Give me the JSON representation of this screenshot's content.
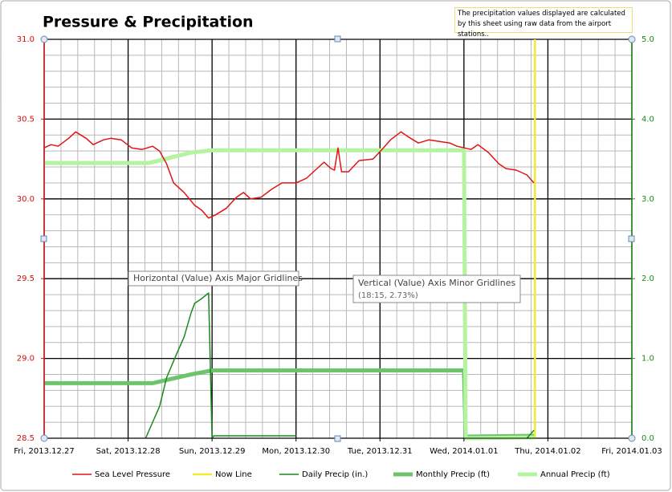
{
  "chart_data": {
    "type": "line",
    "title": "Pressure & Precipitation",
    "note": "The precipitation values displayed are calculated by this sheet using raw data from the airport stations..",
    "annotations": [
      {
        "text": "Horizontal (Value) Axis Major Gridlines"
      },
      {
        "text": "Vertical (Value) Axis Minor Gridlines",
        "detail": "(18:15, 2.73%)"
      }
    ],
    "xlim": [
      "2013-12-27",
      "2014-01-03"
    ],
    "xticks": [
      {
        "value": "2013-12-27",
        "label": "Fri, 2013.12.27"
      },
      {
        "value": "2013-12-28",
        "label": "Sat, 2013.12.28"
      },
      {
        "value": "2013-12-29",
        "label": "Sun, 2013.12.29"
      },
      {
        "value": "2013-12-30",
        "label": "Mon, 2013.12.30"
      },
      {
        "value": "2013-12-31",
        "label": "Tue, 2013.12.31"
      },
      {
        "value": "2014-01-01",
        "label": "Wed, 2014.01.01"
      },
      {
        "value": "2014-01-02",
        "label": "Thu, 2014.01.02"
      },
      {
        "value": "2014-01-03",
        "label": "Fri, 2014.01.03"
      }
    ],
    "x_minor_interval_days": 0.2,
    "ylim": [
      28.5,
      31.0
    ],
    "yticks": [
      {
        "value": 28.5,
        "label": "28.5"
      },
      {
        "value": 29.0,
        "label": "29.0"
      },
      {
        "value": 29.5,
        "label": "29.5"
      },
      {
        "value": 30.0,
        "label": "30.0"
      },
      {
        "value": 30.5,
        "label": "30.5"
      },
      {
        "value": 31.0,
        "label": "31.0"
      }
    ],
    "y_minor_interval": 0.1,
    "y2lim": [
      0,
      5
    ],
    "y2ticks": [
      {
        "value": 0,
        "label": "0.0"
      },
      {
        "value": 1,
        "label": "1.0"
      },
      {
        "value": 2,
        "label": "2.0"
      },
      {
        "value": 3,
        "label": "3.0"
      },
      {
        "value": 4,
        "label": "4.0"
      },
      {
        "value": 5,
        "label": "5.0"
      }
    ],
    "y_axis_color": "#d01010",
    "y2_axis_color": "#1a8a1a",
    "grid": true,
    "legend": "bottom",
    "series": [
      {
        "name": "Sea Level Pressure",
        "color": "#e01414",
        "line_width": 1.5,
        "x": [
          "2013-12-27 00:00",
          "2013-12-27 02:00",
          "2013-12-27 04:00",
          "2013-12-27 07:00",
          "2013-12-27 09:00",
          "2013-12-27 12:00",
          "2013-12-27 14:00",
          "2013-12-27 17:00",
          "2013-12-27 19:00",
          "2013-12-27 22:00",
          "2013-12-28 01:00",
          "2013-12-28 04:00",
          "2013-12-28 07:00",
          "2013-12-28 09:00",
          "2013-12-28 11:00",
          "2013-12-28 13:00",
          "2013-12-28 16:00",
          "2013-12-28 19:00",
          "2013-12-28 21:00",
          "2013-12-28 23:00",
          "2013-12-29 01:00",
          "2013-12-29 04:00",
          "2013-12-29 07:00",
          "2013-12-29 09:00",
          "2013-12-29 11:00",
          "2013-12-29 14:00",
          "2013-12-29 17:00",
          "2013-12-29 20:00",
          "2013-12-30 00:00",
          "2013-12-30 03:00",
          "2013-12-30 06:00",
          "2013-12-30 08:00",
          "2013-12-30 10:00",
          "2013-12-30 11:00",
          "2013-12-30 12:00",
          "2013-12-30 13:00",
          "2013-12-30 15:00",
          "2013-12-30 18:00",
          "2013-12-30 22:00",
          "2013-12-31 01:00",
          "2013-12-31 03:00",
          "2013-12-31 06:00",
          "2013-12-31 08:00",
          "2013-12-31 11:00",
          "2013-12-31 14:00",
          "2013-12-31 17:00",
          "2013-12-31 20:00",
          "2013-12-31 22:00",
          "2014-01-01 02:00",
          "2014-01-01 04:00",
          "2014-01-01 07:00",
          "2014-01-01 10:00",
          "2014-01-01 12:00",
          "2014-01-01 15:00",
          "2014-01-01 18:00",
          "2014-01-01 20:00"
        ],
        "values": [
          30.32,
          30.34,
          30.33,
          30.38,
          30.42,
          30.38,
          30.34,
          30.37,
          30.38,
          30.37,
          30.32,
          30.31,
          30.33,
          30.3,
          30.22,
          30.1,
          30.04,
          29.96,
          29.93,
          29.88,
          29.9,
          29.94,
          30.01,
          30.04,
          30.0,
          30.01,
          30.06,
          30.1,
          30.1,
          30.13,
          30.19,
          30.23,
          30.19,
          30.18,
          30.32,
          30.17,
          30.17,
          30.24,
          30.25,
          30.32,
          30.37,
          30.42,
          30.39,
          30.35,
          30.37,
          30.36,
          30.35,
          30.33,
          30.31,
          30.34,
          30.29,
          30.22,
          30.19,
          30.18,
          30.15,
          30.1
        ]
      },
      {
        "name": "Now Line",
        "color": "#f0ec30",
        "line_width": 2.5,
        "axis": "y2",
        "x": [
          "2014-01-01 20:18",
          "2014-01-01 20:18"
        ],
        "values": [
          0,
          5
        ]
      },
      {
        "name": "Daily Precip (in.)",
        "color": "#1a8a1a",
        "line_width": 1.5,
        "axis": "y2",
        "x": [
          "2013-12-28 05:00",
          "2013-12-28 09:00",
          "2013-12-28 11:00",
          "2013-12-28 14:00",
          "2013-12-28 16:00",
          "2013-12-28 18:00",
          "2013-12-28 19:00",
          "2013-12-28 21:00",
          "2013-12-28 23:00",
          "2013-12-29 00:00",
          "2013-12-29 00:30",
          "2013-12-30 00:00",
          "2013-12-31 00:00",
          "2014-01-01 18:00",
          "2014-01-01 20:00"
        ],
        "values": [
          0,
          0.4,
          0.76,
          1.07,
          1.27,
          1.57,
          1.69,
          1.75,
          1.82,
          0,
          0.03,
          0.03,
          null,
          0,
          0.1
        ]
      },
      {
        "name": "Monthly Precip (ft)",
        "color": "#6cc46c",
        "line_width": 5,
        "axis": "y2",
        "x": [
          "2013-12-27 00:00",
          "2013-12-28 07:00",
          "2013-12-28 18:00",
          "2013-12-29 00:00",
          "2014-01-01 00:00",
          "2014-01-01 00:30",
          "2014-01-01 20:00"
        ],
        "values": [
          0.69,
          0.69,
          0.8,
          0.85,
          0.85,
          0.02,
          0.03
        ]
      },
      {
        "name": "Annual Precip (ft)",
        "color": "#b4f4a0",
        "line_width": 5,
        "axis": "y2",
        "x": [
          "2013-12-27 00:00",
          "2013-12-28 06:00",
          "2013-12-28 18:00",
          "2013-12-29 00:00",
          "2014-01-01 00:00",
          "2014-01-01 00:30",
          "2014-01-01 20:00"
        ],
        "values": [
          3.45,
          3.45,
          3.58,
          3.61,
          3.61,
          0,
          0.01
        ]
      }
    ]
  }
}
